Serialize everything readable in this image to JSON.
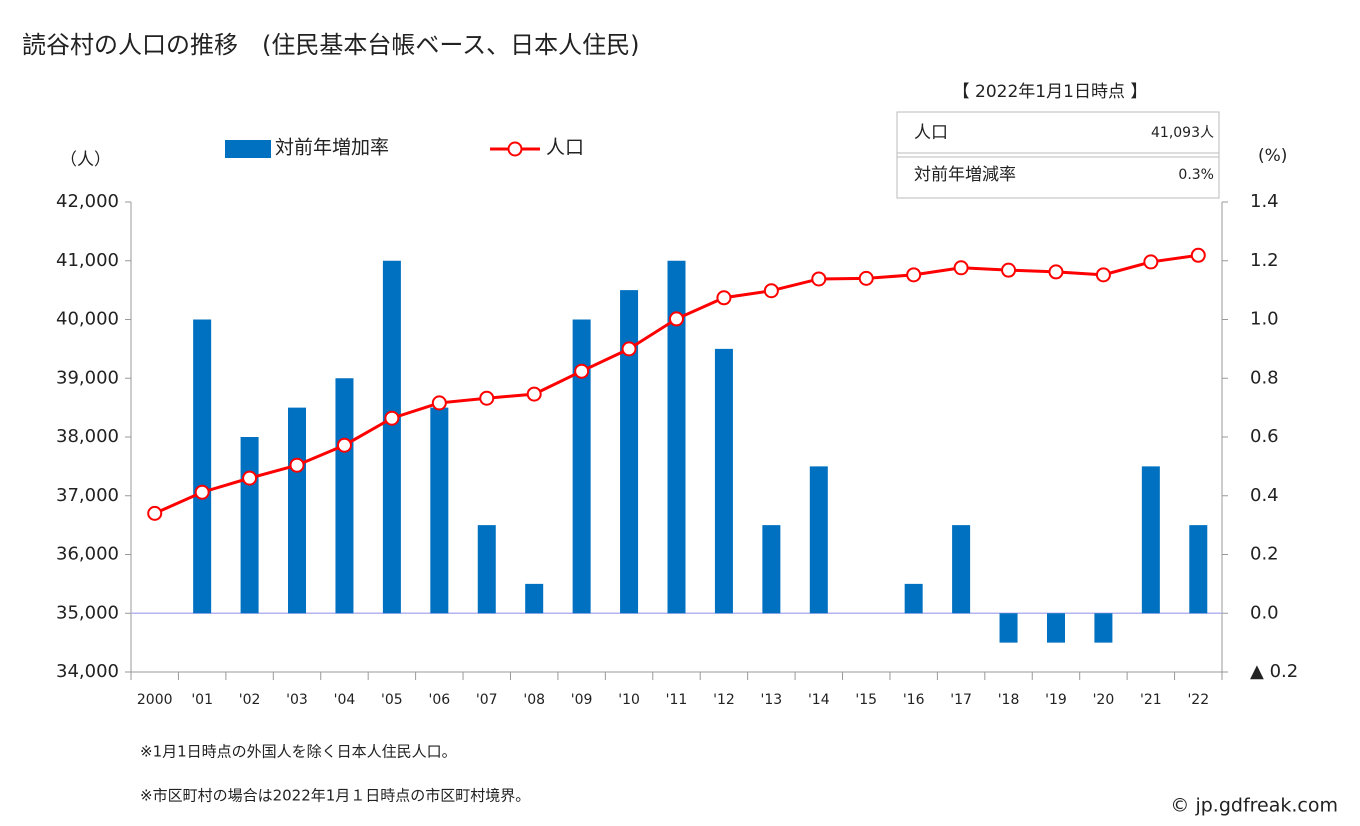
{
  "chart_data": {
    "type": "bar",
    "title": "読谷村の人口の推移　(住民基本台帳ベース、日本人住民)",
    "ylabel": "（人）",
    "y2label": "(%)",
    "categories": [
      "2000",
      "'01",
      "'02",
      "'03",
      "'04",
      "'05",
      "'06",
      "'07",
      "'08",
      "'09",
      "'10",
      "'11",
      "'12",
      "'13",
      "'14",
      "'15",
      "'16",
      "'17",
      "'18",
      "'19",
      "'20",
      "'21",
      "'22"
    ],
    "series": [
      {
        "name": "対前年増加率",
        "type": "bar",
        "color": "#0070c0",
        "axis": "y2",
        "values": [
          null,
          1.0,
          0.6,
          0.7,
          0.8,
          1.2,
          0.7,
          0.3,
          0.1,
          1.0,
          1.1,
          1.2,
          0.9,
          0.3,
          0.5,
          0.0,
          0.1,
          0.3,
          -0.1,
          -0.1,
          -0.1,
          0.5,
          0.3
        ]
      },
      {
        "name": "人口",
        "type": "line",
        "color": "#ff0000",
        "values": [
          36700,
          37060,
          37300,
          37520,
          37860,
          38320,
          38580,
          38660,
          38730,
          39120,
          39500,
          40010,
          40370,
          40490,
          40690,
          40700,
          40760,
          40880,
          40840,
          40810,
          40760,
          40980,
          41093
        ]
      }
    ],
    "ylim": [
      34000,
      42000
    ],
    "yticks": [
      {
        "value": 34000,
        "label": "34,000"
      },
      {
        "value": 35000,
        "label": "35,000"
      },
      {
        "value": 36000,
        "label": "36,000"
      },
      {
        "value": 37000,
        "label": "37,000"
      },
      {
        "value": 38000,
        "label": "38,000"
      },
      {
        "value": 39000,
        "label": "39,000"
      },
      {
        "value": 40000,
        "label": "40,000"
      },
      {
        "value": 41000,
        "label": "41,000"
      },
      {
        "value": 42000,
        "label": "42,000"
      }
    ],
    "y2lim": [
      -0.2,
      1.4
    ],
    "y2ticks": [
      {
        "value": -0.2,
        "label": "▲ 0.2"
      },
      {
        "value": 0,
        "label": "0.0"
      },
      0.2,
      0.4,
      0.6,
      0.8,
      {
        "value": 1,
        "label": "1.0"
      },
      1.2,
      1.4
    ],
    "notes": [
      "※1月1日時点の外国人を除く日本人住民人口。",
      "※市区町村の場合は2022年1月１日時点の市区町村境界。"
    ],
    "source": "© jp.gdfreak.com"
  },
  "info_box": {
    "title": "【 2022年1月1日時点 】",
    "rows": [
      [
        "人口",
        "41,093人"
      ],
      [
        "対前年増減率",
        "0.3%"
      ]
    ]
  }
}
